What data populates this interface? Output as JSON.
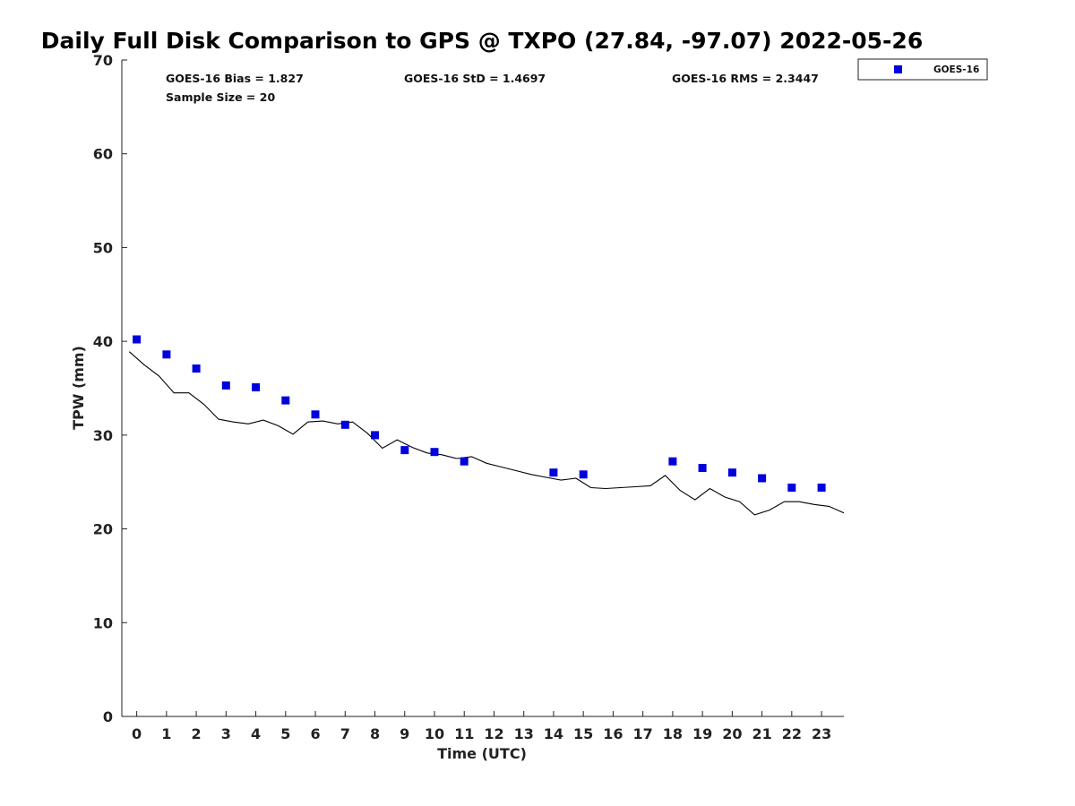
{
  "chart_data": {
    "type": "scatter",
    "title": "Daily Full Disk Comparison to GPS @ TXPO (27.84, -97.07) 2022-05-26",
    "xlabel": "Time (UTC)",
    "ylabel": "TPW (mm)",
    "xlim": [
      -0.5,
      23.75
    ],
    "ylim": [
      0,
      70
    ],
    "x_ticks": [
      0,
      1,
      2,
      3,
      4,
      5,
      6,
      7,
      8,
      9,
      10,
      11,
      12,
      13,
      14,
      15,
      16,
      17,
      18,
      19,
      20,
      21,
      22,
      23
    ],
    "y_ticks": [
      0,
      10,
      20,
      30,
      40,
      50,
      60,
      70
    ],
    "grid": false,
    "legend_position": "top-right-outside",
    "stats": {
      "bias": "GOES-16 Bias = 1.827",
      "std": "GOES-16 StD = 1.4697",
      "rms": "GOES-16 RMS = 2.3447",
      "sample_size": "Sample Size = 20"
    },
    "series": [
      {
        "name": "GOES-16",
        "kind": "markers",
        "color": "#0000dd",
        "marker": "square",
        "x": [
          0,
          1,
          2,
          3,
          4,
          5,
          6,
          7,
          8,
          9,
          10,
          11,
          14,
          15,
          18,
          19,
          20,
          21,
          22,
          23
        ],
        "y": [
          40.2,
          38.6,
          37.1,
          35.3,
          35.1,
          33.7,
          32.2,
          31.1,
          30.0,
          28.4,
          28.2,
          27.2,
          26.0,
          25.8,
          27.2,
          26.5,
          26.0,
          25.4,
          24.4,
          24.4
        ]
      },
      {
        "kind": "line",
        "color": "#000000",
        "x": [
          -0.25,
          0.25,
          0.75,
          1.25,
          1.75,
          2.25,
          2.75,
          3.25,
          3.75,
          4.25,
          4.75,
          5.25,
          5.75,
          6.25,
          6.75,
          7.25,
          7.75,
          8.25,
          8.75,
          9.25,
          9.75,
          10.25,
          10.75,
          11.25,
          11.75,
          12.25,
          12.75,
          13.25,
          13.75,
          14.25,
          14.75,
          15.25,
          15.75,
          16.25,
          16.75,
          17.25,
          17.75,
          18.25,
          18.75,
          19.25,
          19.75,
          20.25,
          20.75,
          21.25,
          21.75,
          22.25,
          22.75,
          23.25,
          23.75
        ],
        "y": [
          38.9,
          37.5,
          36.3,
          34.5,
          34.5,
          33.3,
          31.7,
          31.4,
          31.2,
          31.6,
          31.0,
          30.1,
          31.4,
          31.5,
          31.2,
          31.4,
          30.2,
          28.6,
          29.5,
          28.7,
          28.1,
          27.9,
          27.5,
          27.7,
          27.0,
          26.6,
          26.2,
          25.8,
          25.5,
          25.2,
          25.4,
          24.4,
          24.3,
          24.4,
          24.5,
          24.6,
          25.7,
          24.1,
          23.1,
          24.3,
          23.4,
          22.9,
          21.5,
          22.0,
          22.9,
          22.9,
          22.6,
          22.4,
          21.7
        ]
      }
    ]
  }
}
